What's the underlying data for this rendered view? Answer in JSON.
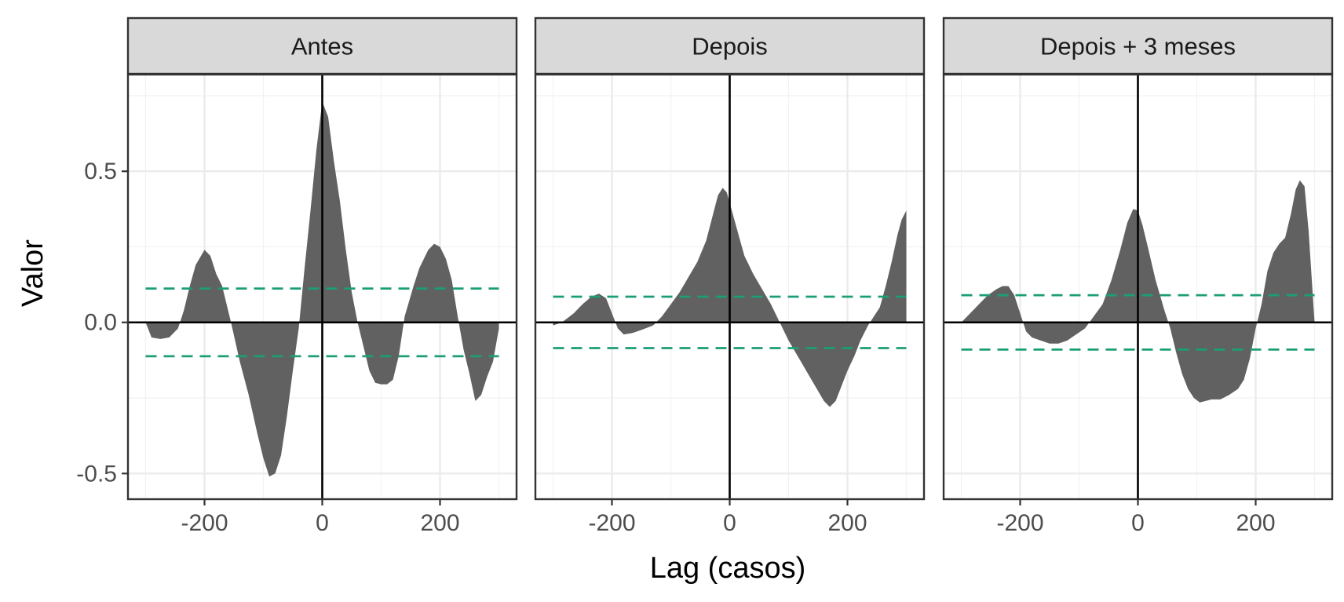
{
  "chart_data": {
    "type": "area",
    "xlabel": "Lag (casos)",
    "ylabel": "Valor",
    "xlim": [
      -330,
      330
    ],
    "ylim": [
      -0.585,
      0.82
    ],
    "x_ticks": [
      -200,
      0,
      200
    ],
    "x_tick_labels": [
      "-200",
      "0",
      "200"
    ],
    "y_ticks": [
      -0.5,
      0.0,
      0.5
    ],
    "y_tick_labels": [
      "-0.5",
      "0.0",
      "0.5"
    ],
    "grid": true,
    "colors": {
      "area": "#616161",
      "ci": "#1b9e77",
      "zero_lines": "#000000"
    },
    "panels": [
      {
        "label": "Antes",
        "ci": 0.112,
        "points": [
          [
            -300,
            0.0
          ],
          [
            -290,
            -0.05
          ],
          [
            -275,
            -0.055
          ],
          [
            -260,
            -0.05
          ],
          [
            -245,
            -0.02
          ],
          [
            -235,
            0.04
          ],
          [
            -225,
            0.12
          ],
          [
            -215,
            0.19
          ],
          [
            -200,
            0.24
          ],
          [
            -190,
            0.22
          ],
          [
            -180,
            0.16
          ],
          [
            -170,
            0.12
          ],
          [
            -155,
            0.0
          ],
          [
            -140,
            -0.13
          ],
          [
            -125,
            -0.24
          ],
          [
            -110,
            -0.37
          ],
          [
            -100,
            -0.45
          ],
          [
            -90,
            -0.51
          ],
          [
            -80,
            -0.5
          ],
          [
            -70,
            -0.44
          ],
          [
            -60,
            -0.31
          ],
          [
            -50,
            -0.16
          ],
          [
            -40,
            -0.02
          ],
          [
            -30,
            0.18
          ],
          [
            -20,
            0.37
          ],
          [
            -10,
            0.57
          ],
          [
            0,
            0.73
          ],
          [
            10,
            0.68
          ],
          [
            20,
            0.53
          ],
          [
            30,
            0.4
          ],
          [
            40,
            0.24
          ],
          [
            50,
            0.1
          ],
          [
            60,
            0.0
          ],
          [
            70,
            -0.08
          ],
          [
            80,
            -0.16
          ],
          [
            90,
            -0.2
          ],
          [
            100,
            -0.205
          ],
          [
            110,
            -0.205
          ],
          [
            120,
            -0.19
          ],
          [
            130,
            -0.11
          ],
          [
            140,
            0.02
          ],
          [
            155,
            0.12
          ],
          [
            165,
            0.18
          ],
          [
            180,
            0.24
          ],
          [
            190,
            0.26
          ],
          [
            200,
            0.25
          ],
          [
            210,
            0.21
          ],
          [
            220,
            0.14
          ],
          [
            230,
            0.02
          ],
          [
            240,
            -0.09
          ],
          [
            250,
            -0.17
          ],
          [
            260,
            -0.26
          ],
          [
            270,
            -0.24
          ],
          [
            280,
            -0.18
          ],
          [
            290,
            -0.13
          ],
          [
            300,
            -0.02
          ]
        ]
      },
      {
        "label": "Depois",
        "ci": 0.085,
        "points": [
          [
            -300,
            -0.01
          ],
          [
            -285,
            0.0
          ],
          [
            -265,
            0.03
          ],
          [
            -250,
            0.06
          ],
          [
            -235,
            0.085
          ],
          [
            -222,
            0.095
          ],
          [
            -210,
            0.08
          ],
          [
            -200,
            0.03
          ],
          [
            -190,
            -0.02
          ],
          [
            -180,
            -0.04
          ],
          [
            -165,
            -0.035
          ],
          [
            -150,
            -0.025
          ],
          [
            -130,
            -0.01
          ],
          [
            -115,
            0.02
          ],
          [
            -100,
            0.06
          ],
          [
            -85,
            0.1
          ],
          [
            -70,
            0.15
          ],
          [
            -55,
            0.2
          ],
          [
            -40,
            0.27
          ],
          [
            -28,
            0.36
          ],
          [
            -20,
            0.42
          ],
          [
            -12,
            0.445
          ],
          [
            -5,
            0.43
          ],
          [
            5,
            0.36
          ],
          [
            15,
            0.29
          ],
          [
            25,
            0.22
          ],
          [
            40,
            0.16
          ],
          [
            55,
            0.11
          ],
          [
            70,
            0.06
          ],
          [
            85,
            0.0
          ],
          [
            100,
            -0.06
          ],
          [
            115,
            -0.11
          ],
          [
            130,
            -0.16
          ],
          [
            145,
            -0.21
          ],
          [
            160,
            -0.26
          ],
          [
            170,
            -0.28
          ],
          [
            180,
            -0.26
          ],
          [
            190,
            -0.21
          ],
          [
            200,
            -0.16
          ],
          [
            212,
            -0.11
          ],
          [
            222,
            -0.06
          ],
          [
            235,
            -0.01
          ],
          [
            245,
            0.02
          ],
          [
            255,
            0.05
          ],
          [
            265,
            0.12
          ],
          [
            275,
            0.2
          ],
          [
            285,
            0.29
          ],
          [
            292,
            0.34
          ],
          [
            300,
            0.37
          ]
        ]
      },
      {
        "label": "Depois + 3 meses",
        "ci": 0.09,
        "points": [
          [
            -300,
            0.0
          ],
          [
            -285,
            0.03
          ],
          [
            -270,
            0.06
          ],
          [
            -255,
            0.09
          ],
          [
            -240,
            0.11
          ],
          [
            -230,
            0.12
          ],
          [
            -220,
            0.12
          ],
          [
            -210,
            0.09
          ],
          [
            -200,
            0.03
          ],
          [
            -190,
            -0.03
          ],
          [
            -180,
            -0.05
          ],
          [
            -165,
            -0.06
          ],
          [
            -150,
            -0.07
          ],
          [
            -135,
            -0.07
          ],
          [
            -120,
            -0.06
          ],
          [
            -105,
            -0.04
          ],
          [
            -90,
            -0.02
          ],
          [
            -75,
            0.02
          ],
          [
            -60,
            0.06
          ],
          [
            -45,
            0.14
          ],
          [
            -30,
            0.24
          ],
          [
            -18,
            0.33
          ],
          [
            -8,
            0.375
          ],
          [
            0,
            0.37
          ],
          [
            8,
            0.32
          ],
          [
            18,
            0.24
          ],
          [
            30,
            0.14
          ],
          [
            45,
            0.04
          ],
          [
            55,
            -0.02
          ],
          [
            65,
            -0.1
          ],
          [
            75,
            -0.17
          ],
          [
            85,
            -0.22
          ],
          [
            95,
            -0.25
          ],
          [
            105,
            -0.265
          ],
          [
            115,
            -0.26
          ],
          [
            125,
            -0.255
          ],
          [
            140,
            -0.255
          ],
          [
            155,
            -0.24
          ],
          [
            170,
            -0.22
          ],
          [
            180,
            -0.19
          ],
          [
            190,
            -0.12
          ],
          [
            200,
            -0.02
          ],
          [
            210,
            0.06
          ],
          [
            220,
            0.17
          ],
          [
            230,
            0.23
          ],
          [
            240,
            0.26
          ],
          [
            250,
            0.28
          ],
          [
            260,
            0.36
          ],
          [
            268,
            0.44
          ],
          [
            275,
            0.47
          ],
          [
            283,
            0.45
          ],
          [
            290,
            0.3
          ],
          [
            296,
            0.12
          ],
          [
            300,
            0.0
          ]
        ]
      }
    ]
  }
}
